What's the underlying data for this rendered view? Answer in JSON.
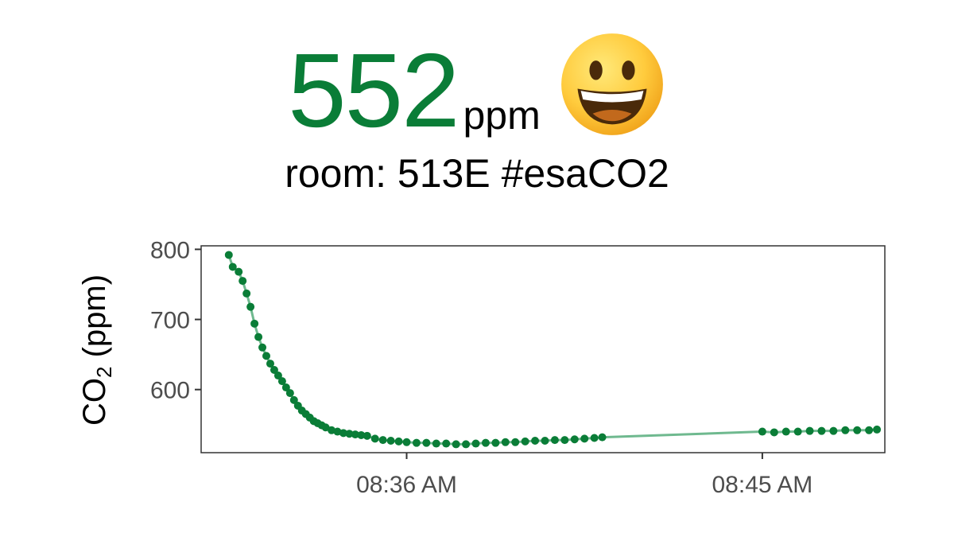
{
  "header": {
    "value": "552",
    "unit": "ppm",
    "face_icon": "grinning-face-icon",
    "room": "room: 513E #esaCO2"
  },
  "colors": {
    "accent": "#0a7d37",
    "line": "#6fb98f",
    "axis_text": "#4d4d4d"
  },
  "chart_data": {
    "type": "line",
    "xlabel": "",
    "ylabel": "CO2 (ppm)",
    "ylabel_main": "CO",
    "ylabel_sub": "2",
    "ylabel_tail": " (ppm)",
    "x_ticks": [
      {
        "label": "08:36 AM",
        "minute": 36
      },
      {
        "label": "08:45 AM",
        "minute": 45
      }
    ],
    "y_ticks": [
      800,
      700,
      600
    ],
    "xlim_minutes": [
      30.8,
      48.1
    ],
    "ylim": [
      510,
      805
    ],
    "grid": false,
    "series": [
      {
        "x_minutes": [
          31.5,
          31.6,
          31.75,
          31.85,
          31.95,
          32.05,
          32.15,
          32.25,
          32.35,
          32.45,
          32.55,
          32.65,
          32.75,
          32.85,
          32.95,
          33.05,
          33.15,
          33.25,
          33.35,
          33.45,
          33.55,
          33.65,
          33.75,
          33.85,
          33.95,
          34.1,
          34.25,
          34.4,
          34.55,
          34.7,
          34.85,
          35.0,
          35.2,
          35.4,
          35.6,
          35.8,
          36.0,
          36.25,
          36.5,
          36.75,
          37.0,
          37.25,
          37.5,
          37.75,
          38.0,
          38.25,
          38.5,
          38.75,
          39.0,
          39.25,
          39.5,
          39.75,
          40.0,
          40.25,
          40.5,
          40.75,
          40.95,
          45.0,
          45.3,
          45.6,
          45.9,
          46.2,
          46.5,
          46.8,
          47.1,
          47.4,
          47.7,
          47.9
        ],
        "values": [
          792,
          775,
          768,
          755,
          737,
          718,
          694,
          675,
          660,
          648,
          637,
          628,
          620,
          612,
          603,
          595,
          585,
          577,
          570,
          565,
          560,
          555,
          552,
          549,
          546,
          542,
          540,
          538,
          537,
          536,
          535,
          534,
          530,
          528,
          527,
          526,
          525,
          524,
          524,
          523,
          523,
          522,
          522,
          523,
          524,
          524,
          525,
          525,
          526,
          527,
          527,
          528,
          528,
          529,
          530,
          531,
          532,
          540,
          539,
          540,
          540,
          541,
          541,
          541,
          542,
          542,
          542,
          543
        ]
      }
    ]
  }
}
